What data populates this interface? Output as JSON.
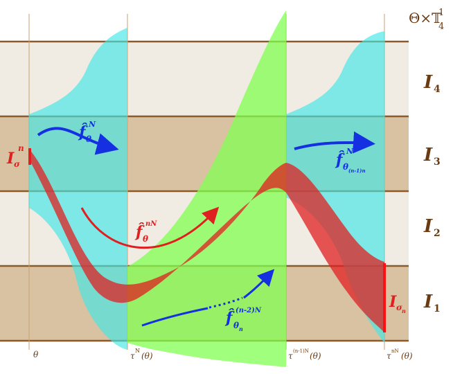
{
  "header": {
    "space_label": "Θ×𝕋",
    "space_sup": "1",
    "space_sub": "4"
  },
  "bands": [
    {
      "label": "I",
      "sub": "4"
    },
    {
      "label": "I",
      "sub": "3"
    },
    {
      "label": "I",
      "sub": "2"
    },
    {
      "label": "I",
      "sub": "1"
    }
  ],
  "x_axis": {
    "theta": "θ",
    "t1_base": "τ",
    "t1_sup": "N",
    "t1_arg": "(θ)",
    "t2_base": "τ",
    "t2_sup": "(n-1)N",
    "t2_arg": "(θ)",
    "t3_base": "τ",
    "t3_sup": "nN",
    "t3_arg": "(θ)"
  },
  "annotations": {
    "f_N": {
      "base": "f̂",
      "sub": "θ",
      "sup": "N"
    },
    "f_nN": {
      "base": "f̂",
      "sub": "θ",
      "sup": "nN"
    },
    "f_n2N": {
      "base": "f̂",
      "sub": "θ",
      "subsub": "n",
      "sup": "(n-2)N"
    },
    "f_n1": {
      "base": "f̂",
      "sub": "θ",
      "subsub": "(n-1)n",
      "sup": "N"
    },
    "I_sigma_n": {
      "base": "I",
      "sub": "σ",
      "sup": "n"
    },
    "I_sigma_sub_n": {
      "base": "I",
      "sub": "σ",
      "subsub": "n"
    }
  },
  "colors": {
    "band_light": "#f0ece4",
    "band_dark": "#d9c2a2",
    "band_line": "#8b5a2b",
    "cyan": "#40e6e6",
    "green": "#80ff50",
    "red": "#e02020",
    "blue": "#1530e0",
    "label_brown": "#6b3a10"
  }
}
